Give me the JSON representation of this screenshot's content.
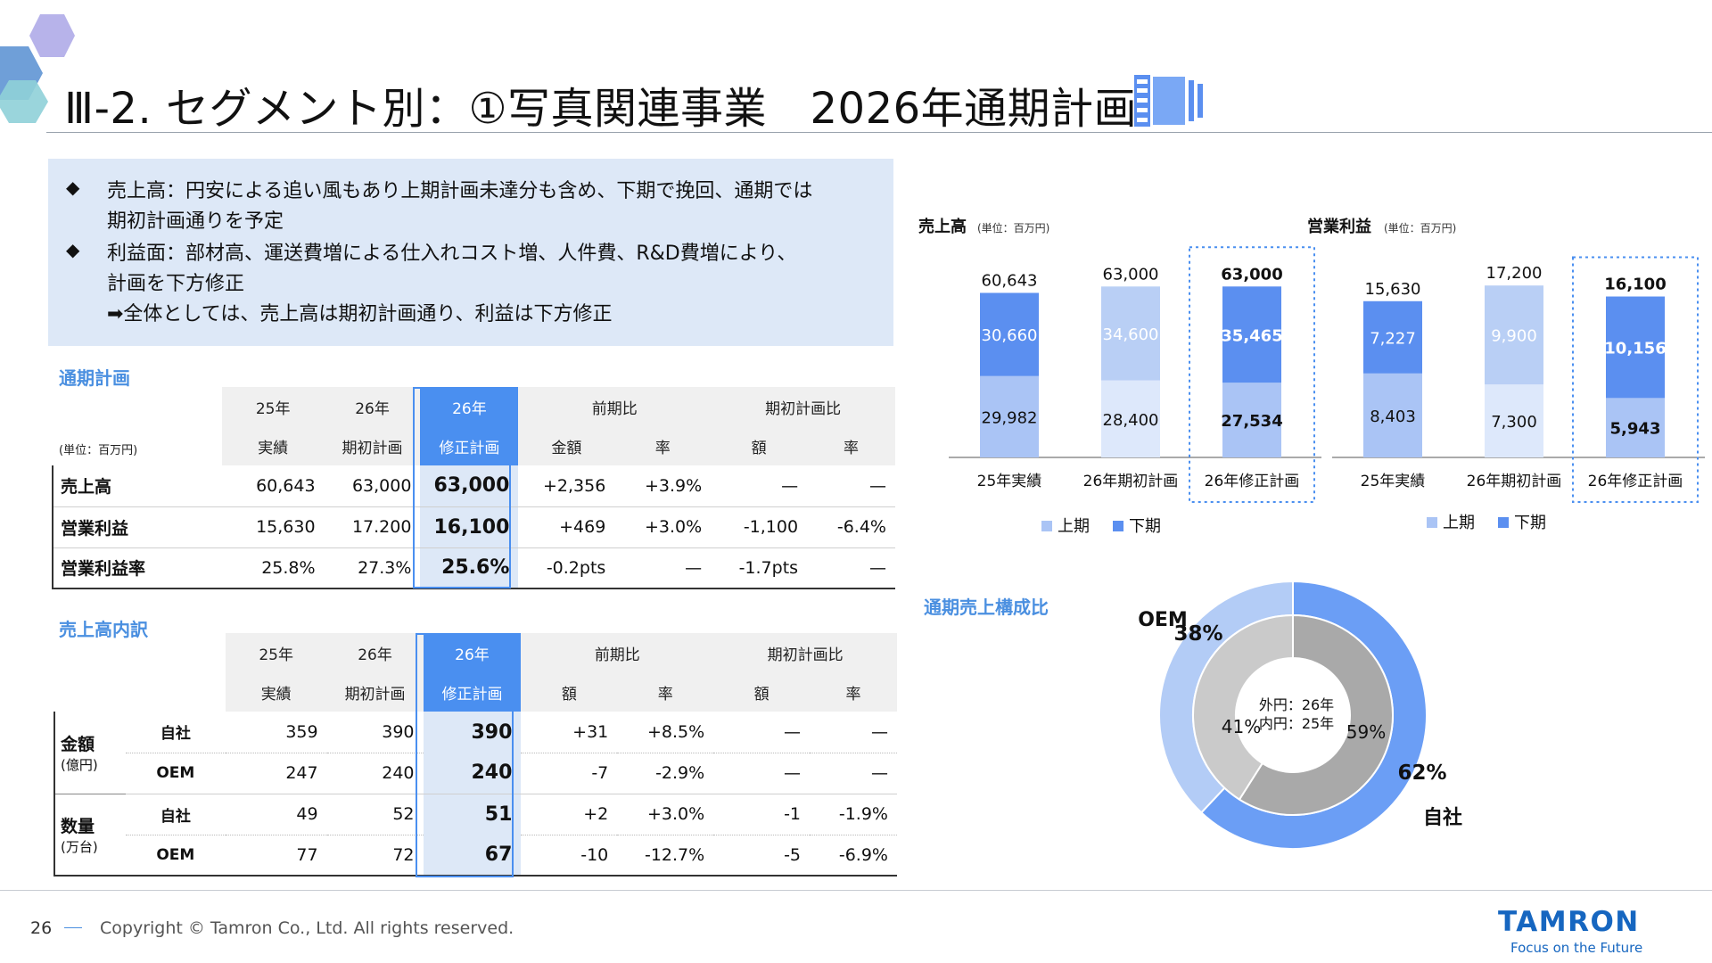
{
  "header": {
    "title": "Ⅲ-2. セグメント別：①写真関連事業　2026年通期計画"
  },
  "summary": {
    "lines": [
      "売上高：円安による追い風もあり上期計画未達分も含め、下期で挽回、通期では",
      "期初計画通りを予定",
      "利益面：部材高、運送費増による仕入れコスト増、人件費、R&D費増により、",
      "計画を下方修正",
      "➡全体としては、売上高は期初計画通り、利益は下方修正"
    ]
  },
  "plan_section": {
    "label": "通期計画",
    "unit": "(単位：百万円)",
    "header_top": [
      "25年",
      "26年",
      "26年",
      "前期比",
      "期初計画比"
    ],
    "header_sub": [
      "実績",
      "期初計画",
      "修正計画",
      "金額",
      "率",
      "額",
      "率"
    ],
    "rows": [
      {
        "label": "売上高",
        "values": [
          "60,643",
          "63,000",
          "63,000",
          "+2,356",
          "+3.9%",
          "—",
          "—"
        ]
      },
      {
        "label": "営業利益",
        "values": [
          "15,630",
          "17.200",
          "16,100",
          "+469",
          "+3.0%",
          "-1,100",
          "-6.4%"
        ]
      },
      {
        "label": "営業利益率",
        "values": [
          "25.8%",
          "27.3%",
          "25.6%",
          "-0.2pts",
          "—",
          "-1.7pts",
          "—"
        ]
      }
    ]
  },
  "breakdown_section": {
    "label": "売上高内訳",
    "header_top": [
      "25年",
      "26年",
      "26年",
      "前期比",
      "期初計画比"
    ],
    "header_sub": [
      "実績",
      "期初計画",
      "修正計画",
      "額",
      "率",
      "額",
      "率"
    ],
    "groups": [
      {
        "label": "金額",
        "unit": "(億円)",
        "rows": [
          {
            "label": "自社",
            "values": [
              "359",
              "390",
              "390",
              "+31",
              "+8.5%",
              "—",
              "—"
            ]
          },
          {
            "label": "OEM",
            "values": [
              "247",
              "240",
              "240",
              "-7",
              "-2.9%",
              "—",
              "—"
            ]
          }
        ]
      },
      {
        "label": "数量",
        "unit": "(万台)",
        "rows": [
          {
            "label": "自社",
            "values": [
              "49",
              "52",
              "51",
              "+2",
              "+3.0%",
              "-1",
              "-1.9%"
            ]
          },
          {
            "label": "OEM",
            "values": [
              "77",
              "72",
              "67",
              "-10",
              "-12.7%",
              "-5",
              "-6.9%"
            ]
          }
        ]
      }
    ]
  },
  "colors": {
    "accent": "#4a8ff0",
    "h1_25": "#aac4f5",
    "h1_26plan": "#dde8fb",
    "h1_26rev": "#aac4f5",
    "h2_25": "#5b8ff0",
    "h2_26plan": "#b9cff5",
    "h2_26rev": "#5b8ff0"
  },
  "chart_data": [
    {
      "type": "bar",
      "stacked": true,
      "title": "売上高",
      "unit": "(単位：百万円)",
      "categories": [
        "25年実績",
        "26年期初計画",
        "26年修正計画"
      ],
      "series": [
        {
          "name": "上期",
          "values": [
            29982,
            28400,
            27534
          ]
        },
        {
          "name": "下期",
          "values": [
            30660,
            34600,
            35465
          ]
        }
      ],
      "value_labels": {
        "上期": [
          "29,982",
          "28,400",
          "27,534"
        ],
        "下期": [
          "30,660",
          "34,600",
          "35,465"
        ]
      },
      "totals": [
        60643,
        63000,
        63000
      ],
      "total_labels": [
        "60,643",
        "63,000",
        "63,000"
      ],
      "legend": [
        "上期",
        "下期"
      ],
      "legend_position": "bottom",
      "ylim": [
        0,
        70000
      ]
    },
    {
      "type": "bar",
      "stacked": true,
      "title": "営業利益",
      "unit": "(単位：百万円)",
      "categories": [
        "25年実績",
        "26年期初計画",
        "26年修正計画"
      ],
      "series": [
        {
          "name": "上期",
          "values": [
            8403,
            7300,
            5943
          ]
        },
        {
          "name": "下期",
          "values": [
            7227,
            9900,
            10156
          ]
        }
      ],
      "value_labels": {
        "上期": [
          "8,403",
          "7,300",
          "5,943"
        ],
        "下期": [
          "7,227",
          "9,900",
          "10,156"
        ]
      },
      "totals": [
        15630,
        17200,
        16100
      ],
      "total_labels": [
        "15,630",
        "17,200",
        "16,100"
      ],
      "legend": [
        "上期",
        "下期"
      ],
      "legend_position": "bottom",
      "ylim": [
        0,
        19000
      ]
    },
    {
      "type": "pie",
      "donut": true,
      "title": "通期売上構成比",
      "center_text": [
        "外円：26年",
        "内円：25年"
      ],
      "outer": {
        "labels": [
          "自社",
          "OEM"
        ],
        "values": [
          62,
          38
        ],
        "pct_labels": [
          "62%",
          "38%"
        ]
      },
      "inner": {
        "labels": [
          "自社",
          "OEM"
        ],
        "values": [
          59,
          41
        ],
        "pct_labels": [
          "59%",
          "41%"
        ]
      },
      "outer_labels": {
        "self": "自社",
        "oem": "OEM"
      }
    }
  ],
  "footer": {
    "page": "26",
    "copyright": "Copyright © Tamron Co., Ltd. All rights reserved.",
    "logo": "TAMRON",
    "tagline": "Focus on the Future"
  }
}
